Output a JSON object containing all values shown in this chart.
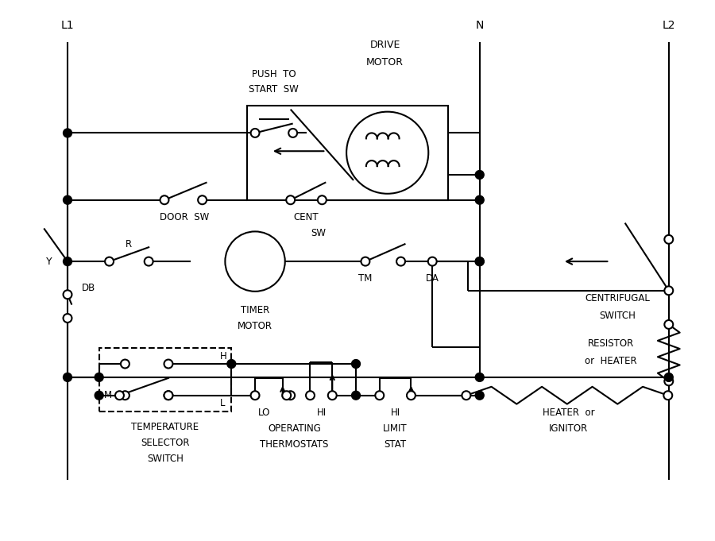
{
  "bg": "#ffffff",
  "lc": "#000000",
  "lw": 1.5,
  "labels": {
    "L1": "L1",
    "N": "N",
    "L2": "L2",
    "push_to": "PUSH  TO",
    "start_sw": "START  SW",
    "drive": "DRIVE",
    "motor": "MOTOR",
    "door_sw": "DOOR  SW",
    "cent": "CENT",
    "sw": "SW",
    "timer": "TIMER",
    "timer_motor": "MOTOR",
    "TM": "TM",
    "DA": "DA",
    "centrifugal": "CENTRIFUGAL",
    "switch": "SWITCH",
    "Y": "Y",
    "R": "R",
    "DB": "DB",
    "resistor": "RESISTOR",
    "or_heater": "or  HEATER",
    "temperature": "TEMPERATURE",
    "selector": "SELECTOR",
    "switch2": "SWITCH",
    "M": "M",
    "H": "H",
    "L": "L",
    "lo": "LO",
    "hi": "HI",
    "operating": "OPERATING",
    "thermostats": "THERMOSTATS",
    "hi_limit": "HI",
    "limit": "LIMIT",
    "stat": "STAT",
    "heater_or": "HEATER  or",
    "ignitor": "IGNITOR"
  }
}
